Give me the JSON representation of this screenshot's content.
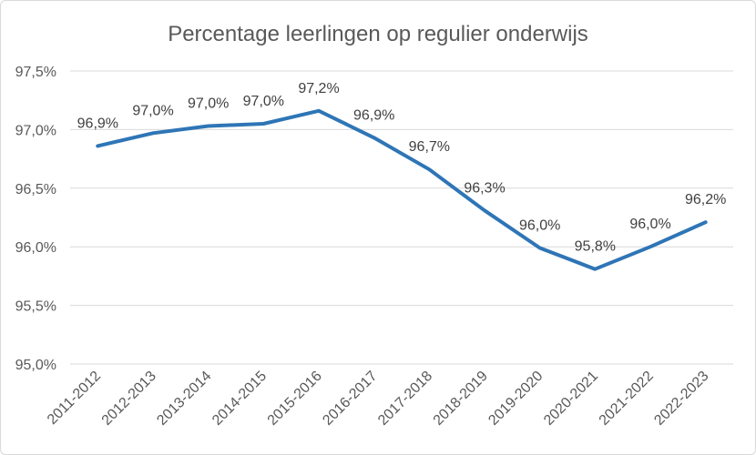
{
  "chart_data": {
    "type": "line",
    "title": "Percentage leerlingen op regulier onderwijs",
    "xlabel": "",
    "ylabel": "",
    "categories": [
      "2011-2012",
      "2012-2013",
      "2013-2014",
      "2014-2015",
      "2015-2016",
      "2016-2017",
      "2017-2018",
      "2018-2019",
      "2019-2020",
      "2020-2021",
      "2021-2022",
      "2022-2023"
    ],
    "series": [
      {
        "values": [
          96.86,
          96.97,
          97.03,
          97.05,
          97.16,
          96.93,
          96.66,
          96.31,
          95.99,
          95.81,
          96.0,
          96.21
        ],
        "data_labels": [
          "96,9%",
          "97,0%",
          "97,0%",
          "97,0%",
          "97,2%",
          "96,9%",
          "96,7%",
          "96,3%",
          "96,0%",
          "95,8%",
          "96,0%",
          "96,2%"
        ]
      }
    ],
    "ylim": [
      95.0,
      97.5
    ],
    "yticks": [
      97.5,
      97.0,
      96.5,
      96.0,
      95.5,
      95.0
    ],
    "ytick_labels": [
      "97,5%",
      "97,0%",
      "96,5%",
      "96,0%",
      "95,5%",
      "95,0%"
    ],
    "grid": true,
    "legend": "none",
    "colors": {
      "series": "#2e75b6"
    }
  }
}
